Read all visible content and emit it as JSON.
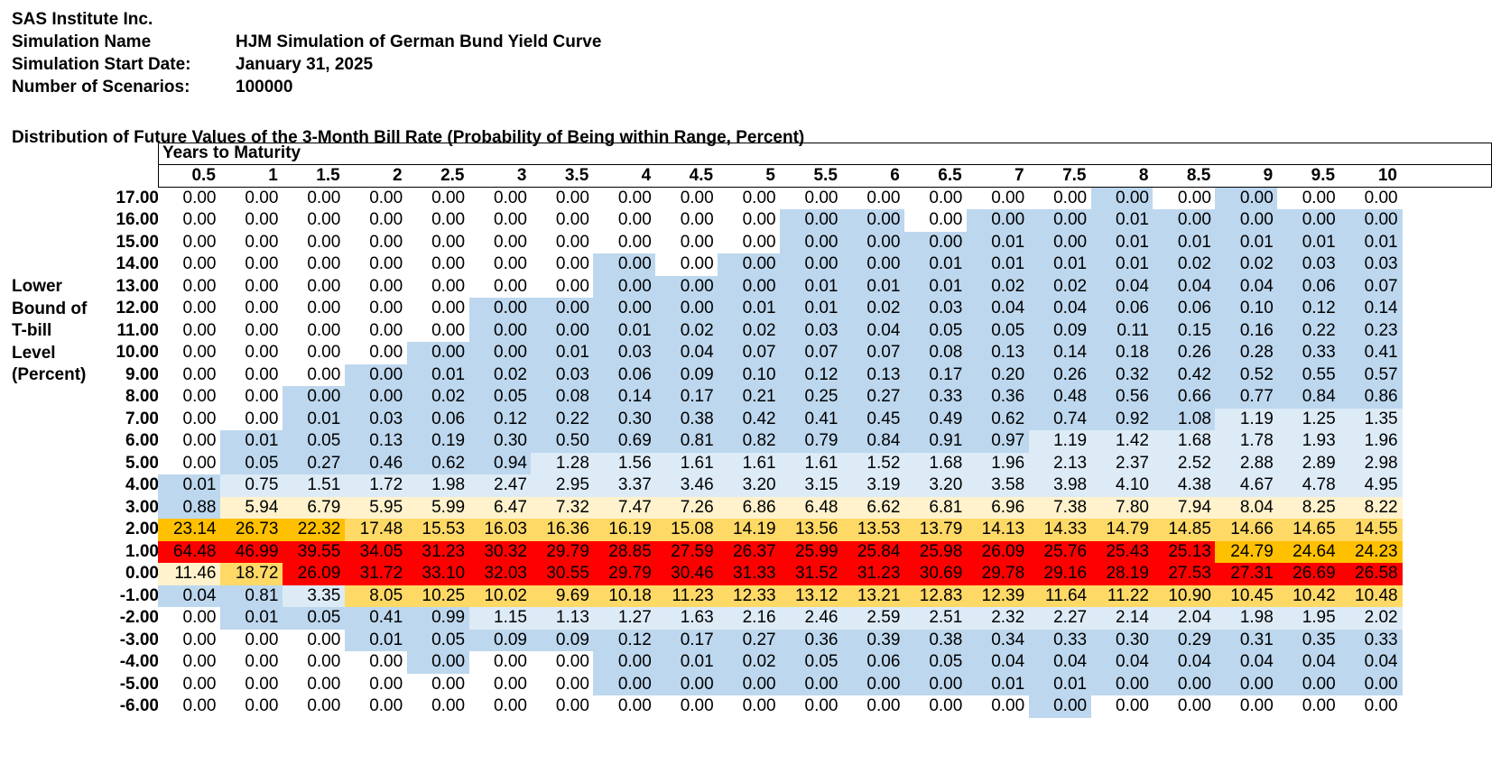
{
  "header": {
    "company": "SAS Institute Inc.",
    "simulation_name_label": "Simulation Name",
    "simulation_name": "HJM Simulation of German Bund Yield Curve",
    "start_date_label": "Simulation Start Date:",
    "start_date": "January 31, 2025",
    "scenarios_label": "Number of Scenarios:",
    "scenarios": "100000"
  },
  "table_title": "Distribution of Future Values of the 3-Month Bill Rate (Probability of Being within Range, Percent)",
  "column_group_label": "Years to Maturity",
  "row_axis_label": [
    "Lower",
    "Bound of",
    "T-bill",
    "Level",
    "(Percent)"
  ],
  "colors": {
    "white": "#ffffff",
    "blue": "#bdd7ee",
    "light_blue": "#ddebf7",
    "light_yellow": "#fff2cc",
    "yellow": "#ffd966",
    "orange": "#ffc000",
    "red": "#ff0000"
  },
  "chart_data": {
    "type": "heatmap",
    "title": "Distribution of Future Values of the 3-Month Bill Rate (Probability of Being within Range, Percent)",
    "xlabel": "Years to Maturity",
    "ylabel": "Lower Bound of T-bill Level (Percent)",
    "columns": [
      "0.5",
      "1",
      "1.5",
      "2",
      "2.5",
      "3",
      "3.5",
      "4",
      "4.5",
      "5",
      "5.5",
      "6",
      "6.5",
      "7",
      "7.5",
      "8",
      "8.5",
      "9",
      "9.5",
      "10"
    ],
    "rows": [
      "17.00",
      "16.00",
      "15.00",
      "14.00",
      "13.00",
      "12.00",
      "11.00",
      "10.00",
      "9.00",
      "8.00",
      "7.00",
      "6.00",
      "5.00",
      "4.00",
      "3.00",
      "2.00",
      "1.00",
      "0.00",
      "-1.00",
      "-2.00",
      "-3.00",
      "-4.00",
      "-5.00",
      "-6.00"
    ],
    "values": [
      [
        "0.00",
        "0.00",
        "0.00",
        "0.00",
        "0.00",
        "0.00",
        "0.00",
        "0.00",
        "0.00",
        "0.00",
        "0.00",
        "0.00",
        "0.00",
        "0.00",
        "0.00",
        "0.00",
        "0.00",
        "0.00",
        "0.00",
        "0.00"
      ],
      [
        "0.00",
        "0.00",
        "0.00",
        "0.00",
        "0.00",
        "0.00",
        "0.00",
        "0.00",
        "0.00",
        "0.00",
        "0.00",
        "0.00",
        "0.00",
        "0.00",
        "0.00",
        "0.01",
        "0.00",
        "0.00",
        "0.00",
        "0.00"
      ],
      [
        "0.00",
        "0.00",
        "0.00",
        "0.00",
        "0.00",
        "0.00",
        "0.00",
        "0.00",
        "0.00",
        "0.00",
        "0.00",
        "0.00",
        "0.00",
        "0.01",
        "0.00",
        "0.01",
        "0.01",
        "0.01",
        "0.01",
        "0.01"
      ],
      [
        "0.00",
        "0.00",
        "0.00",
        "0.00",
        "0.00",
        "0.00",
        "0.00",
        "0.00",
        "0.00",
        "0.00",
        "0.00",
        "0.00",
        "0.01",
        "0.01",
        "0.01",
        "0.01",
        "0.02",
        "0.02",
        "0.03",
        "0.03"
      ],
      [
        "0.00",
        "0.00",
        "0.00",
        "0.00",
        "0.00",
        "0.00",
        "0.00",
        "0.00",
        "0.00",
        "0.00",
        "0.01",
        "0.01",
        "0.01",
        "0.02",
        "0.02",
        "0.04",
        "0.04",
        "0.04",
        "0.06",
        "0.07"
      ],
      [
        "0.00",
        "0.00",
        "0.00",
        "0.00",
        "0.00",
        "0.00",
        "0.00",
        "0.00",
        "0.00",
        "0.01",
        "0.01",
        "0.02",
        "0.03",
        "0.04",
        "0.04",
        "0.06",
        "0.06",
        "0.10",
        "0.12",
        "0.14"
      ],
      [
        "0.00",
        "0.00",
        "0.00",
        "0.00",
        "0.00",
        "0.00",
        "0.00",
        "0.01",
        "0.02",
        "0.02",
        "0.03",
        "0.04",
        "0.05",
        "0.05",
        "0.09",
        "0.11",
        "0.15",
        "0.16",
        "0.22",
        "0.23"
      ],
      [
        "0.00",
        "0.00",
        "0.00",
        "0.00",
        "0.00",
        "0.00",
        "0.01",
        "0.03",
        "0.04",
        "0.07",
        "0.07",
        "0.07",
        "0.08",
        "0.13",
        "0.14",
        "0.18",
        "0.26",
        "0.28",
        "0.33",
        "0.41"
      ],
      [
        "0.00",
        "0.00",
        "0.00",
        "0.00",
        "0.01",
        "0.02",
        "0.03",
        "0.06",
        "0.09",
        "0.10",
        "0.12",
        "0.13",
        "0.17",
        "0.20",
        "0.26",
        "0.32",
        "0.42",
        "0.52",
        "0.55",
        "0.57"
      ],
      [
        "0.00",
        "0.00",
        "0.00",
        "0.00",
        "0.02",
        "0.05",
        "0.08",
        "0.14",
        "0.17",
        "0.21",
        "0.25",
        "0.27",
        "0.33",
        "0.36",
        "0.48",
        "0.56",
        "0.66",
        "0.77",
        "0.84",
        "0.86"
      ],
      [
        "0.00",
        "0.00",
        "0.01",
        "0.03",
        "0.06",
        "0.12",
        "0.22",
        "0.30",
        "0.38",
        "0.42",
        "0.41",
        "0.45",
        "0.49",
        "0.62",
        "0.74",
        "0.92",
        "1.08",
        "1.19",
        "1.25",
        "1.35"
      ],
      [
        "0.00",
        "0.01",
        "0.05",
        "0.13",
        "0.19",
        "0.30",
        "0.50",
        "0.69",
        "0.81",
        "0.82",
        "0.79",
        "0.84",
        "0.91",
        "0.97",
        "1.19",
        "1.42",
        "1.68",
        "1.78",
        "1.93",
        "1.96"
      ],
      [
        "0.00",
        "0.05",
        "0.27",
        "0.46",
        "0.62",
        "0.94",
        "1.28",
        "1.56",
        "1.61",
        "1.61",
        "1.61",
        "1.52",
        "1.68",
        "1.96",
        "2.13",
        "2.37",
        "2.52",
        "2.88",
        "2.89",
        "2.98"
      ],
      [
        "0.01",
        "0.75",
        "1.51",
        "1.72",
        "1.98",
        "2.47",
        "2.95",
        "3.37",
        "3.46",
        "3.20",
        "3.15",
        "3.19",
        "3.20",
        "3.58",
        "3.98",
        "4.10",
        "4.38",
        "4.67",
        "4.78",
        "4.95"
      ],
      [
        "0.88",
        "5.94",
        "6.79",
        "5.95",
        "5.99",
        "6.47",
        "7.32",
        "7.47",
        "7.26",
        "6.86",
        "6.48",
        "6.62",
        "6.81",
        "6.96",
        "7.38",
        "7.80",
        "7.94",
        "8.04",
        "8.25",
        "8.22"
      ],
      [
        "23.14",
        "26.73",
        "22.32",
        "17.48",
        "15.53",
        "16.03",
        "16.36",
        "16.19",
        "15.08",
        "14.19",
        "13.56",
        "13.53",
        "13.79",
        "14.13",
        "14.33",
        "14.79",
        "14.85",
        "14.66",
        "14.65",
        "14.55"
      ],
      [
        "64.48",
        "46.99",
        "39.55",
        "34.05",
        "31.23",
        "30.32",
        "29.79",
        "28.85",
        "27.59",
        "26.37",
        "25.99",
        "25.84",
        "25.98",
        "26.09",
        "25.76",
        "25.43",
        "25.13",
        "24.79",
        "24.64",
        "24.23"
      ],
      [
        "11.46",
        "18.72",
        "26.09",
        "31.72",
        "33.10",
        "32.03",
        "30.55",
        "29.79",
        "30.46",
        "31.33",
        "31.52",
        "31.23",
        "30.69",
        "29.78",
        "29.16",
        "28.19",
        "27.53",
        "27.31",
        "26.69",
        "26.58"
      ],
      [
        "0.04",
        "0.81",
        "3.35",
        "8.05",
        "10.25",
        "10.02",
        "9.69",
        "10.18",
        "11.23",
        "12.33",
        "13.12",
        "13.21",
        "12.83",
        "12.39",
        "11.64",
        "11.22",
        "10.90",
        "10.45",
        "10.42",
        "10.48"
      ],
      [
        "0.00",
        "0.01",
        "0.05",
        "0.41",
        "0.99",
        "1.15",
        "1.13",
        "1.27",
        "1.63",
        "2.16",
        "2.46",
        "2.59",
        "2.51",
        "2.32",
        "2.27",
        "2.14",
        "2.04",
        "1.98",
        "1.95",
        "2.02"
      ],
      [
        "0.00",
        "0.00",
        "0.00",
        "0.01",
        "0.05",
        "0.09",
        "0.09",
        "0.12",
        "0.17",
        "0.27",
        "0.36",
        "0.39",
        "0.38",
        "0.34",
        "0.33",
        "0.30",
        "0.29",
        "0.31",
        "0.35",
        "0.33"
      ],
      [
        "0.00",
        "0.00",
        "0.00",
        "0.00",
        "0.00",
        "0.00",
        "0.00",
        "0.00",
        "0.01",
        "0.02",
        "0.05",
        "0.06",
        "0.05",
        "0.04",
        "0.04",
        "0.04",
        "0.04",
        "0.04",
        "0.04",
        "0.04"
      ],
      [
        "0.00",
        "0.00",
        "0.00",
        "0.00",
        "0.00",
        "0.00",
        "0.00",
        "0.00",
        "0.00",
        "0.00",
        "0.00",
        "0.00",
        "0.00",
        "0.01",
        "0.01",
        "0.00",
        "0.00",
        "0.00",
        "0.00",
        "0.00"
      ],
      [
        "0.00",
        "0.00",
        "0.00",
        "0.00",
        "0.00",
        "0.00",
        "0.00",
        "0.00",
        "0.00",
        "0.00",
        "0.00",
        "0.00",
        "0.00",
        "0.00",
        "0.00",
        "0.00",
        "0.00",
        "0.00",
        "0.00",
        "0.00"
      ]
    ],
    "cell_colors": [
      "WWWWWWWWWWWWWWWBWBWW",
      "WWWWWWWWWWBBWBBBBBBB",
      "WWWWWWWWWWBBBBBBBBBB",
      "WWWWWWWBWBBBBBBBBBBB",
      "WWWWWWWBBBBBBBBBBBBB",
      "WWWWWBBBBBBBBBBBBBBB",
      "WWWWWBBBBBBBBBBBBBBB",
      "WWWWBBBBBBBBBBBBBBBB",
      "WWWBBBBBBBBBBBBBBBBB",
      "WWBBBBBBBBBBBBBBBBBB",
      "WWBBBBBBBBBBBBBBBLLL",
      "WBBBBBBBBBBBBBLLLLLL",
      "WBBBBBLLLLLLLLLLLLLL",
      "BLLLLLLLLLLLLLLLLLLL",
      "BPPPPPPPPPPPPPPPPPPP",
      "OOOYYYYYYYYYYYYYYYYY",
      "RRRRRRRRRRRRRRRRROOO",
      "PYRRRRRRRRRRRRRRRRRR",
      "BBLYYYYYYYYYYYYYYYYY",
      "WBBBBLLLLLLLLLLLLLLL",
      "WWWBBBBBBBBBBBBBBBBB",
      "WWWWBWWBBBBBBBBBBBBB",
      "WWWWWWWBBBBBBBBBBBBB",
      "WWWWWWWWWWWWWWBWWWWW"
    ]
  }
}
